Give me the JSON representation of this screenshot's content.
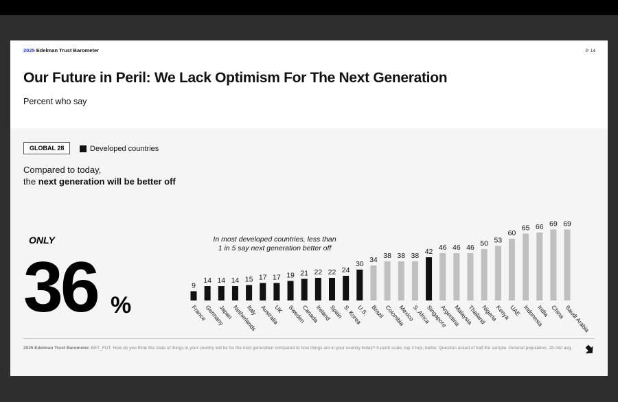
{
  "header": {
    "brand_year": "2025",
    "brand_name": "Edelman Trust Barometer",
    "page": "P. 14",
    "title": "Our Future in Peril: We Lack Optimism For The Next Generation",
    "subtitle": "Percent who say"
  },
  "badge": "GLOBAL 28",
  "legend_label": "Developed countries",
  "question_line1": "Compared to today,",
  "question_prefix": "the ",
  "question_bold": "next generation will be better off",
  "highlight": {
    "only": "ONLY",
    "value": "36",
    "unit": "%"
  },
  "annotation_line1": "In most developed countries, less than",
  "annotation_line2": "1 in 5 say next generation better off",
  "colors": {
    "developed": "#111111",
    "other": "#c0c0c0",
    "brand": "#1f3cff"
  },
  "chart_data": {
    "type": "bar",
    "ylim": [
      0,
      100
    ],
    "categories": [
      "France",
      "Germany",
      "Japan",
      "Netherlands",
      "Italy",
      "Australia",
      "UK",
      "Sweden",
      "Canada",
      "Ireland",
      "Spain",
      "S. Korea",
      "U.S.",
      "Brazil",
      "Colombia",
      "Mexico",
      "S. Africa",
      "Singapore",
      "Argentina",
      "Malaysia",
      "Thailand",
      "Nigeria",
      "Kenya",
      "UAE",
      "Indonesia",
      "India",
      "China",
      "Saudi Arabia"
    ],
    "values": [
      9,
      14,
      14,
      14,
      15,
      17,
      17,
      19,
      21,
      22,
      22,
      24,
      30,
      34,
      38,
      38,
      38,
      42,
      46,
      46,
      46,
      50,
      53,
      60,
      65,
      66,
      69,
      69
    ],
    "developed": [
      true,
      true,
      true,
      true,
      true,
      true,
      true,
      true,
      true,
      true,
      true,
      true,
      true,
      false,
      false,
      false,
      false,
      true,
      false,
      false,
      false,
      false,
      false,
      false,
      false,
      false,
      false,
      false
    ]
  },
  "footer": {
    "source_bold": "2025 Edelman Trust Barometer.",
    "text": " BET_FUT. How do you think the state of things in your country will be for the next generation compared to how things are in your country today? 5-point scale; top 2 box, better. Question asked of half the sample. General population, 28-mkt avg."
  }
}
